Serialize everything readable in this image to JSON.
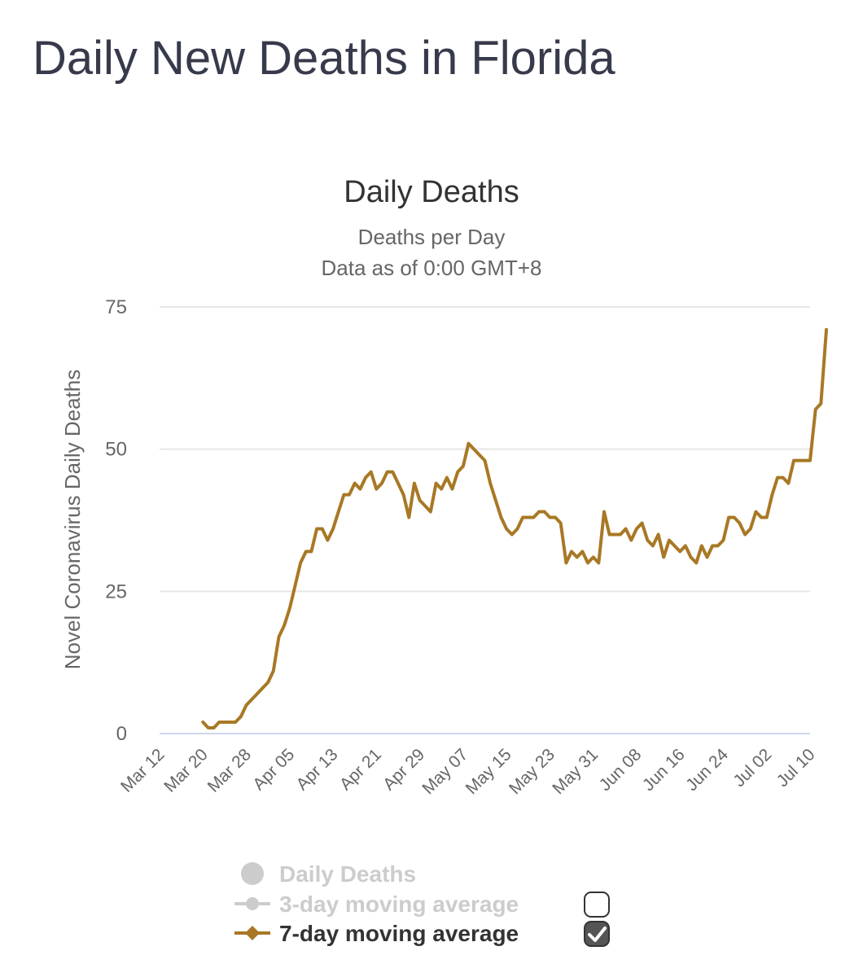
{
  "page": {
    "title": "Daily New Deaths in Florida"
  },
  "colors": {
    "series": "#a87825",
    "inactive": "#cccccc",
    "grid": "#e6e6e6",
    "axis": "#ccd6eb"
  },
  "chart_data": {
    "type": "line",
    "title": "Daily Deaths",
    "subtitle": "Deaths per Day",
    "subtitle2": "Data as of 0:00 GMT+8",
    "ylabel": "Novel Coronavirus Daily Deaths",
    "xlabel": "",
    "ylim": [
      0,
      75
    ],
    "yticks": [
      0,
      25,
      50,
      75
    ],
    "x_start": "Mar 12",
    "x_end_day_index": 120,
    "xticks": [
      {
        "label": "Mar 12",
        "day": 0
      },
      {
        "label": "Mar 20",
        "day": 8
      },
      {
        "label": "Mar 28",
        "day": 16
      },
      {
        "label": "Apr 05",
        "day": 24
      },
      {
        "label": "Apr 13",
        "day": 32
      },
      {
        "label": "Apr 21",
        "day": 40
      },
      {
        "label": "Apr 29",
        "day": 48
      },
      {
        "label": "May 07",
        "day": 56
      },
      {
        "label": "May 15",
        "day": 64
      },
      {
        "label": "May 23",
        "day": 72
      },
      {
        "label": "May 31",
        "day": 80
      },
      {
        "label": "Jun 08",
        "day": 88
      },
      {
        "label": "Jun 16",
        "day": 96
      },
      {
        "label": "Jun 24",
        "day": 104
      },
      {
        "label": "Jul 02",
        "day": 112
      },
      {
        "label": "Jul 10",
        "day": 120
      }
    ],
    "series": [
      {
        "name": "7-day moving average",
        "start_day": 8,
        "values": [
          2,
          1,
          1,
          2,
          2,
          2,
          2,
          3,
          5,
          6,
          7,
          8,
          9,
          11,
          17,
          19,
          22,
          26,
          30,
          32,
          32,
          36,
          36,
          34,
          36,
          39,
          42,
          42,
          44,
          43,
          45,
          46,
          43,
          44,
          46,
          46,
          44,
          42,
          38,
          44,
          41,
          40,
          39,
          44,
          43,
          45,
          43,
          46,
          47,
          51,
          50,
          49,
          48,
          44,
          41,
          38,
          36,
          35,
          36,
          38,
          38,
          38,
          39,
          39,
          38,
          38,
          37,
          30,
          32,
          31,
          32,
          30,
          31,
          30,
          39,
          35,
          35,
          35,
          36,
          34,
          36,
          37,
          34,
          33,
          35,
          31,
          34,
          33,
          32,
          33,
          31,
          30,
          33,
          31,
          33,
          33,
          34,
          38,
          38,
          37,
          35,
          36,
          39,
          38,
          38,
          42,
          45,
          45,
          44,
          48,
          48,
          48,
          48,
          57,
          58,
          71
        ]
      }
    ]
  },
  "legend": [
    {
      "label": "Daily Deaths",
      "active": false,
      "marker": "circle",
      "has_checkbox": false
    },
    {
      "label": "3-day moving average",
      "active": false,
      "marker": "line-circle",
      "has_checkbox": true,
      "checked": false
    },
    {
      "label": "7-day moving average",
      "active": true,
      "marker": "line-diamond",
      "has_checkbox": true,
      "checked": true
    }
  ]
}
